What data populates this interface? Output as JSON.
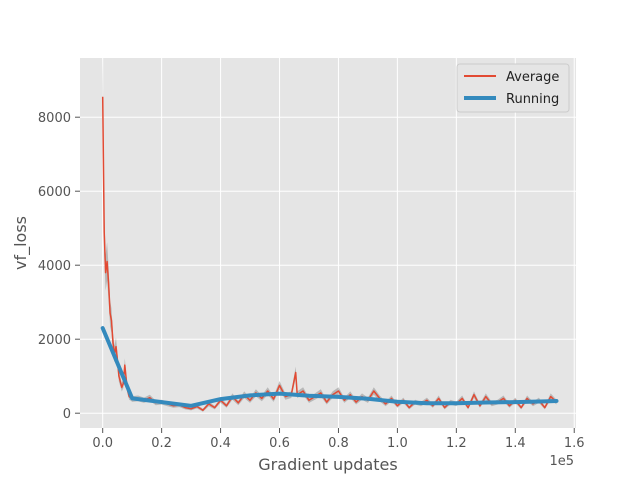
{
  "chart_data": {
    "type": "line",
    "title": "",
    "xlabel": "Gradient updates",
    "ylabel": "vf_loss",
    "x_offset_label": "1e5",
    "xlim": [
      -0.077,
      1.606
    ],
    "ylim": [
      -400,
      9600
    ],
    "x_ticks": [
      0.0,
      0.2,
      0.4,
      0.6,
      0.8,
      1.0,
      1.2,
      1.4,
      1.6
    ],
    "x_tick_labels": [
      "0.0",
      "0.2",
      "0.4",
      "0.6",
      "0.8",
      "1.0",
      "1.2",
      "1.4",
      "1.6"
    ],
    "y_ticks": [
      0,
      2000,
      4000,
      6000,
      8000
    ],
    "y_tick_labels": [
      "0",
      "2000",
      "4000",
      "6000",
      "8000"
    ],
    "grid": true,
    "legend_position": "top-right",
    "series": [
      {
        "name": "Average",
        "color": "#E24A33",
        "x": [
          0.0,
          0.005,
          0.01,
          0.015,
          0.02,
          0.025,
          0.03,
          0.035,
          0.04,
          0.045,
          0.05,
          0.055,
          0.06,
          0.065,
          0.07,
          0.075,
          0.08,
          0.085,
          0.09,
          0.095,
          0.1,
          0.12,
          0.14,
          0.16,
          0.18,
          0.2,
          0.22,
          0.24,
          0.26,
          0.28,
          0.3,
          0.32,
          0.34,
          0.36,
          0.38,
          0.4,
          0.42,
          0.44,
          0.46,
          0.48,
          0.5,
          0.52,
          0.54,
          0.56,
          0.58,
          0.6,
          0.62,
          0.64,
          0.655,
          0.66,
          0.68,
          0.7,
          0.72,
          0.74,
          0.76,
          0.78,
          0.8,
          0.82,
          0.84,
          0.86,
          0.88,
          0.9,
          0.92,
          0.94,
          0.96,
          0.98,
          1.0,
          1.02,
          1.04,
          1.06,
          1.08,
          1.1,
          1.12,
          1.14,
          1.16,
          1.18,
          1.2,
          1.22,
          1.24,
          1.26,
          1.28,
          1.3,
          1.32,
          1.34,
          1.36,
          1.38,
          1.4,
          1.42,
          1.44,
          1.46,
          1.48,
          1.5,
          1.52,
          1.54
        ],
        "values": [
          8550,
          4900,
          3800,
          4100,
          3500,
          2700,
          2500,
          1900,
          1600,
          1800,
          1450,
          1000,
          850,
          700,
          800,
          1300,
          900,
          600,
          450,
          420,
          380,
          400,
          350,
          420,
          280,
          300,
          250,
          200,
          220,
          150,
          120,
          180,
          80,
          250,
          150,
          350,
          200,
          450,
          280,
          500,
          350,
          550,
          400,
          600,
          380,
          750,
          450,
          500,
          1100,
          500,
          600,
          350,
          450,
          550,
          300,
          500,
          600,
          350,
          500,
          300,
          450,
          350,
          600,
          400,
          250,
          400,
          200,
          350,
          150,
          300,
          250,
          350,
          200,
          400,
          150,
          300,
          250,
          400,
          150,
          500,
          200,
          450,
          250,
          300,
          400,
          200,
          350,
          150,
          400,
          250,
          350,
          150,
          450,
          300
        ]
      },
      {
        "name": "Running",
        "color": "#348ABD",
        "x": [
          0.0,
          0.1,
          0.3,
          0.4,
          0.5,
          0.6,
          0.7,
          0.8,
          0.9,
          1.0,
          1.1,
          1.2,
          1.3,
          1.4,
          1.5,
          1.54
        ],
        "values": [
          2300,
          400,
          200,
          380,
          480,
          530,
          470,
          440,
          390,
          310,
          270,
          270,
          290,
          300,
          320,
          330
        ]
      }
    ]
  }
}
